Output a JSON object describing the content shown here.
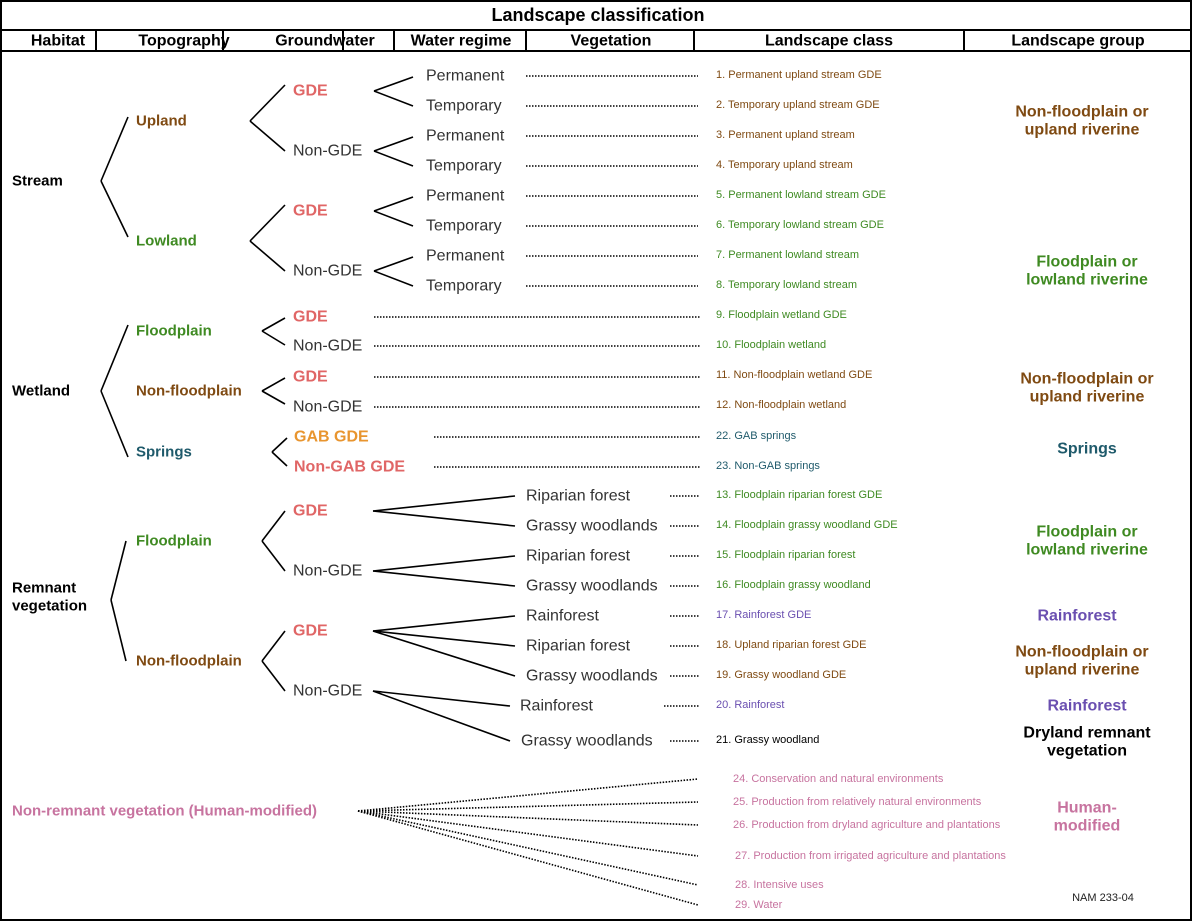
{
  "title": "Landscape classification",
  "headers": [
    "Habitat",
    "Topography",
    "Groundwater",
    "Water regime",
    "Vegetation",
    "Landscape class",
    "Landscape group"
  ],
  "colors": {
    "upland": "#7f4a12",
    "lowland": "#3f8a22",
    "gde": "#e06666",
    "gab": "#e8952f",
    "springs": "#1f5a6b",
    "rainforest": "#6a4fb0",
    "human": "#c7739f",
    "black": "#000000",
    "grey": "#333333"
  },
  "habitat": {
    "stream": "Stream",
    "wetland": "Wetland",
    "remnant_1": "Remnant",
    "remnant_2": "vegetation",
    "non_remnant": "Non-remnant vegetation (Human-modified)"
  },
  "topography": [
    "Upland",
    "Lowland",
    "Floodplain",
    "Non-floodplain",
    "Springs",
    "Floodplain",
    "Non-floodplain"
  ],
  "groundwater": [
    "GDE",
    "Non-GDE",
    "GDE",
    "Non-GDE",
    "GDE",
    "Non-GDE",
    "GDE",
    "Non-GDE",
    "GAB GDE",
    "Non-GAB GDE",
    "GDE",
    "Non-GDE",
    "GDE",
    "Non-GDE"
  ],
  "water_regime": [
    "Permanent",
    "Temporary",
    "Permanent",
    "Temporary",
    "Permanent",
    "Temporary",
    "Permanent",
    "Temporary"
  ],
  "vegetation": [
    "Riparian forest",
    "Grassy woodlands",
    "Riparian forest",
    "Grassy woodlands",
    "Rainforest",
    "Riparian forest",
    "Grassy woodlands",
    "Rainforest",
    "Grassy woodlands"
  ],
  "classes": [
    "1. Permanent upland stream GDE",
    "2. Temporary upland stream GDE",
    "3. Permanent upland stream",
    "4. Temporary upland stream",
    "5. Permanent lowland stream GDE",
    "6. Temporary lowland stream GDE",
    "7. Permanent lowland stream",
    "8. Temporary lowland stream",
    "9. Floodplain wetland GDE",
    "10. Floodplain wetland",
    "11. Non-floodplain wetland GDE",
    "12. Non-floodplain wetland",
    "22. GAB springs",
    "23. Non-GAB springs",
    "13. Floodplain riparian forest GDE",
    "14. Floodplain grassy woodland GDE",
    "15. Floodplain riparian forest",
    "16. Floodplain grassy woodland",
    "17. Rainforest GDE",
    "18. Upland riparian forest GDE",
    "19. Grassy woodland GDE",
    "20. Rainforest",
    "21. Grassy woodland",
    "24. Conservation and natural environments",
    "25. Production from relatively natural environments",
    "26. Production from dryland agriculture and plantations",
    "27. Production from irrigated agriculture and plantations",
    "28. Intensive uses",
    "29. Water"
  ],
  "groups": [
    [
      "Non-floodplain or",
      "upland riverine"
    ],
    [
      "Floodplain or",
      "lowland riverine"
    ],
    [
      "Non-floodplain or",
      "upland riverine"
    ],
    [
      "Springs"
    ],
    [
      "Floodplain or",
      "lowland riverine"
    ],
    [
      "Rainforest"
    ],
    [
      "Non-floodplain or",
      "upland riverine"
    ],
    [
      "Rainforest"
    ],
    [
      "Dryland remnant",
      "vegetation"
    ],
    [
      "Human-",
      "modified"
    ]
  ],
  "figure_code": "NAM 233-04"
}
